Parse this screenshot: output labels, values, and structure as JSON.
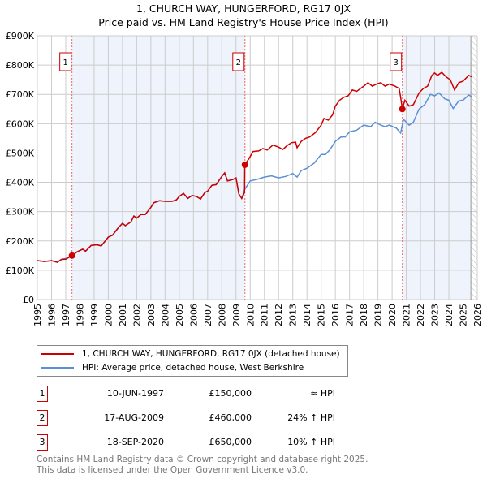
{
  "title": "1, CHURCH WAY, HUNGERFORD, RG17 0JX",
  "subtitle": "Price paid vs. HM Land Registry's House Price Index (HPI)",
  "chart_data": {
    "type": "line",
    "ylim": [
      0,
      900000
    ],
    "xlim": [
      1995,
      2026
    ],
    "yticks": [
      {
        "v": 0,
        "l": "£0"
      },
      {
        "v": 100000,
        "l": "£100K"
      },
      {
        "v": 200000,
        "l": "£200K"
      },
      {
        "v": 300000,
        "l": "£300K"
      },
      {
        "v": 400000,
        "l": "£400K"
      },
      {
        "v": 500000,
        "l": "£500K"
      },
      {
        "v": 600000,
        "l": "£600K"
      },
      {
        "v": 700000,
        "l": "£700K"
      },
      {
        "v": 800000,
        "l": "£800K"
      },
      {
        "v": 900000,
        "l": "£900K"
      }
    ],
    "xticks": [
      "1995",
      "1996",
      "1997",
      "1998",
      "1999",
      "2000",
      "2001",
      "2002",
      "2003",
      "2004",
      "2005",
      "2006",
      "2007",
      "2008",
      "2009",
      "2010",
      "2011",
      "2012",
      "2013",
      "2014",
      "2015",
      "2016",
      "2017",
      "2018",
      "2019",
      "2020",
      "2021",
      "2022",
      "2023",
      "2024",
      "2025",
      "2026"
    ],
    "series": [
      {
        "name": "1, CHURCH WAY, HUNGERFORD, RG17 0JX (detached house)",
        "color": "#cc0000",
        "points": [
          [
            1995,
            133
          ],
          [
            1995.5,
            130
          ],
          [
            1996,
            133
          ],
          [
            1996.4,
            127
          ],
          [
            1996.7,
            137
          ],
          [
            1997,
            138
          ],
          [
            1997.45,
            150
          ],
          [
            1997.8,
            163
          ],
          [
            1998.2,
            172
          ],
          [
            1998.4,
            165
          ],
          [
            1998.8,
            185
          ],
          [
            1999.2,
            187
          ],
          [
            1999.5,
            183
          ],
          [
            2000,
            213
          ],
          [
            2000.3,
            220
          ],
          [
            2000.7,
            245
          ],
          [
            2001,
            260
          ],
          [
            2001.2,
            252
          ],
          [
            2001.6,
            265
          ],
          [
            2001.8,
            285
          ],
          [
            2002,
            278
          ],
          [
            2002.3,
            290
          ],
          [
            2002.6,
            290
          ],
          [
            2003,
            315
          ],
          [
            2003.2,
            330
          ],
          [
            2003.6,
            337
          ],
          [
            2004,
            335
          ],
          [
            2004.5,
            335
          ],
          [
            2004.8,
            340
          ],
          [
            2005,
            352
          ],
          [
            2005.3,
            362
          ],
          [
            2005.6,
            345
          ],
          [
            2005.9,
            355
          ],
          [
            2006.2,
            352
          ],
          [
            2006.5,
            343
          ],
          [
            2006.8,
            365
          ],
          [
            2007,
            370
          ],
          [
            2007.3,
            390
          ],
          [
            2007.6,
            392
          ],
          [
            2008,
            420
          ],
          [
            2008.2,
            432
          ],
          [
            2008.4,
            405
          ],
          [
            2008.8,
            410
          ],
          [
            2009,
            415
          ],
          [
            2009.2,
            360
          ],
          [
            2009.4,
            345
          ],
          [
            2009.6,
            365
          ],
          [
            2009.62,
            460
          ],
          [
            2009.9,
            480
          ],
          [
            2010.2,
            505
          ],
          [
            2010.6,
            507
          ],
          [
            2010.9,
            515
          ],
          [
            2011.2,
            510
          ],
          [
            2011.6,
            527
          ],
          [
            2012,
            520
          ],
          [
            2012.3,
            512
          ],
          [
            2012.6,
            525
          ],
          [
            2012.9,
            535
          ],
          [
            2013.2,
            537
          ],
          [
            2013.3,
            518
          ],
          [
            2013.6,
            540
          ],
          [
            2013.9,
            550
          ],
          [
            2014.2,
            555
          ],
          [
            2014.6,
            570
          ],
          [
            2015,
            595
          ],
          [
            2015.2,
            618
          ],
          [
            2015.5,
            612
          ],
          [
            2015.8,
            630
          ],
          [
            2016,
            660
          ],
          [
            2016.3,
            680
          ],
          [
            2016.6,
            690
          ],
          [
            2016.9,
            695
          ],
          [
            2017.2,
            715
          ],
          [
            2017.5,
            710
          ],
          [
            2018,
            728
          ],
          [
            2018.3,
            740
          ],
          [
            2018.6,
            728
          ],
          [
            2018.9,
            735
          ],
          [
            2019.2,
            740
          ],
          [
            2019.5,
            728
          ],
          [
            2019.8,
            735
          ],
          [
            2020.2,
            728
          ],
          [
            2020.5,
            720
          ],
          [
            2020.6,
            690
          ],
          [
            2020.72,
            650
          ],
          [
            2020.9,
            680
          ],
          [
            2021.2,
            660
          ],
          [
            2021.5,
            665
          ],
          [
            2021.9,
            705
          ],
          [
            2022.2,
            720
          ],
          [
            2022.5,
            728
          ],
          [
            2022.8,
            765
          ],
          [
            2023,
            773
          ],
          [
            2023.2,
            765
          ],
          [
            2023.5,
            775
          ],
          [
            2023.8,
            760
          ],
          [
            2024.1,
            750
          ],
          [
            2024.4,
            715
          ],
          [
            2024.7,
            740
          ],
          [
            2025,
            745
          ],
          [
            2025.4,
            765
          ],
          [
            2025.6,
            760
          ]
        ]
      },
      {
        "name": "HPI: Average price, detached house, West Berkshire",
        "color": "#5b8fd4",
        "points": [
          [
            1995,
            133
          ],
          [
            1995.5,
            130
          ],
          [
            1996,
            133
          ],
          [
            1996.4,
            127
          ],
          [
            1996.7,
            137
          ],
          [
            1997,
            140
          ],
          [
            1997.45,
            150
          ],
          [
            1997.8,
            163
          ],
          [
            1998.2,
            172
          ],
          [
            1998.4,
            165
          ],
          [
            1998.8,
            185
          ],
          [
            1999.2,
            187
          ],
          [
            1999.5,
            183
          ],
          [
            2000,
            213
          ],
          [
            2000.3,
            220
          ],
          [
            2000.7,
            245
          ],
          [
            2001,
            260
          ],
          [
            2001.2,
            252
          ],
          [
            2001.6,
            265
          ],
          [
            2001.8,
            285
          ],
          [
            2002,
            278
          ],
          [
            2002.3,
            290
          ],
          [
            2002.6,
            290
          ],
          [
            2003,
            315
          ],
          [
            2003.2,
            330
          ],
          [
            2003.6,
            337
          ],
          [
            2004,
            335
          ],
          [
            2004.5,
            335
          ],
          [
            2004.8,
            340
          ],
          [
            2005,
            352
          ],
          [
            2005.3,
            362
          ],
          [
            2005.6,
            345
          ],
          [
            2005.9,
            355
          ],
          [
            2006.2,
            352
          ],
          [
            2006.5,
            343
          ],
          [
            2006.8,
            365
          ],
          [
            2007,
            370
          ],
          [
            2007.3,
            390
          ],
          [
            2007.6,
            392
          ],
          [
            2008,
            420
          ],
          [
            2008.2,
            432
          ],
          [
            2008.4,
            405
          ],
          [
            2008.8,
            410
          ],
          [
            2009,
            415
          ],
          [
            2009.2,
            360
          ],
          [
            2009.4,
            345
          ],
          [
            2009.6,
            375
          ],
          [
            2010,
            405
          ],
          [
            2010.5,
            410
          ],
          [
            2011,
            418
          ],
          [
            2011.5,
            422
          ],
          [
            2012,
            415
          ],
          [
            2012.5,
            420
          ],
          [
            2013,
            430
          ],
          [
            2013.3,
            418
          ],
          [
            2013.6,
            440
          ],
          [
            2014,
            448
          ],
          [
            2014.5,
            465
          ],
          [
            2015,
            495
          ],
          [
            2015.3,
            495
          ],
          [
            2015.6,
            510
          ],
          [
            2016,
            540
          ],
          [
            2016.4,
            555
          ],
          [
            2016.7,
            555
          ],
          [
            2017,
            572
          ],
          [
            2017.5,
            578
          ],
          [
            2018,
            595
          ],
          [
            2018.5,
            590
          ],
          [
            2018.8,
            605
          ],
          [
            2019.2,
            595
          ],
          [
            2019.5,
            590
          ],
          [
            2019.8,
            595
          ],
          [
            2020.3,
            585
          ],
          [
            2020.6,
            568
          ],
          [
            2020.8,
            615
          ],
          [
            2021.2,
            595
          ],
          [
            2021.5,
            605
          ],
          [
            2021.9,
            650
          ],
          [
            2022.3,
            665
          ],
          [
            2022.7,
            700
          ],
          [
            2023,
            695
          ],
          [
            2023.3,
            705
          ],
          [
            2023.7,
            685
          ],
          [
            2024,
            680
          ],
          [
            2024.3,
            652
          ],
          [
            2024.7,
            678
          ],
          [
            2025,
            680
          ],
          [
            2025.4,
            698
          ],
          [
            2025.6,
            692
          ]
        ]
      }
    ],
    "sales": [
      {
        "label": "1",
        "x": 1997.44,
        "y": 150
      },
      {
        "label": "2",
        "x": 2009.63,
        "y": 460
      },
      {
        "label": "3",
        "x": 2020.72,
        "y": 650
      }
    ],
    "shaded": [
      [
        1997.44,
        2009.63
      ],
      [
        2020.72,
        2025.55
      ]
    ],
    "hatched_from": 2025.55,
    "grid": true,
    "legend_position": "below"
  },
  "legend": [
    "1, CHURCH WAY, HUNGERFORD, RG17 0JX (detached house)",
    "HPI: Average price, detached house, West Berkshire"
  ],
  "transactions": [
    {
      "num": "1",
      "date": "10-JUN-1997",
      "price": "£150,000",
      "hpi": "≈ HPI"
    },
    {
      "num": "2",
      "date": "17-AUG-2009",
      "price": "£460,000",
      "hpi": "24% ↑ HPI"
    },
    {
      "num": "3",
      "date": "18-SEP-2020",
      "price": "£650,000",
      "hpi": "10% ↑ HPI"
    }
  ],
  "footer": [
    "Contains HM Land Registry data © Crown copyright and database right 2025.",
    "This data is licensed under the Open Government Licence v3.0."
  ]
}
